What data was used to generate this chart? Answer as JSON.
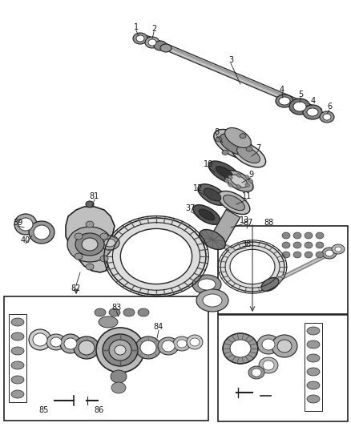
{
  "bg_color": "#ffffff",
  "fig_width": 4.38,
  "fig_height": 5.33,
  "dpi": 100,
  "line_color": "#222222",
  "label_fontsize": 7.0,
  "label_color": "#111111",
  "shaft_color": "#555555",
  "gear_color": "#666666",
  "part_light": "#cccccc",
  "part_mid": "#999999",
  "part_dark": "#555555"
}
